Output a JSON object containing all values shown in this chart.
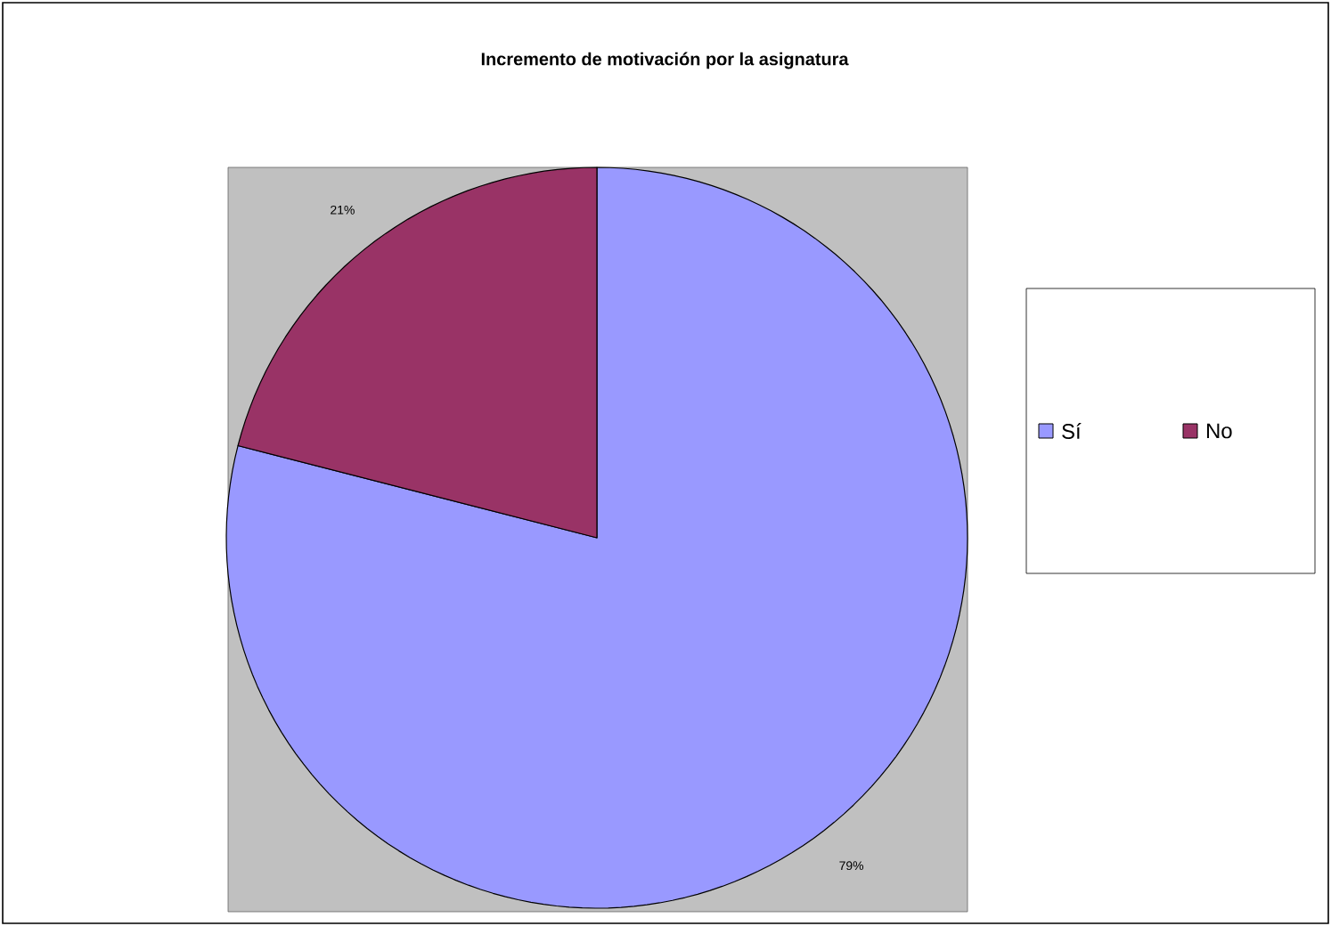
{
  "chart_data": {
    "type": "pie",
    "title": "Incremento de motivación por la asignatura",
    "categories": [
      "Sí",
      "No"
    ],
    "values": [
      79,
      21
    ],
    "colors": [
      "#9999ff",
      "#993366"
    ],
    "value_labels": [
      "79%",
      "21%"
    ],
    "legend": "right"
  }
}
